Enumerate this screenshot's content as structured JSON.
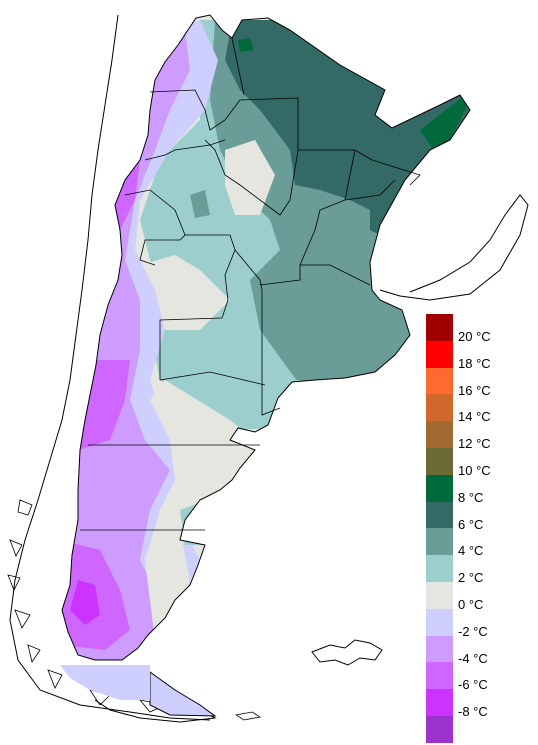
{
  "legend": {
    "items": [
      {
        "label": "20 °C",
        "color": "#a00000"
      },
      {
        "label": "18 °C",
        "color": "#ff0000"
      },
      {
        "label": "16 °C",
        "color": "#ff6a30"
      },
      {
        "label": "14 °C",
        "color": "#d0682c"
      },
      {
        "label": "12 °C",
        "color": "#a16a30"
      },
      {
        "label": "10 °C",
        "color": "#6a6a34"
      },
      {
        "label": "8 °C",
        "color": "#006a3c"
      },
      {
        "label": "6 °C",
        "color": "#336a66"
      },
      {
        "label": "4 °C",
        "color": "#6a9c98"
      },
      {
        "label": "2 °C",
        "color": "#9ccece"
      },
      {
        "label": "0 °C",
        "color": "#e6e6e0"
      },
      {
        "label": "-2 °C",
        "color": "#ceceff"
      },
      {
        "label": "-4 °C",
        "color": "#ce9cff"
      },
      {
        "label": "-6 °C",
        "color": "#ce66ff"
      },
      {
        "label": "-8 °C",
        "color": "#cc33ff"
      }
    ],
    "bottom_color": "#9c33cc"
  }
}
